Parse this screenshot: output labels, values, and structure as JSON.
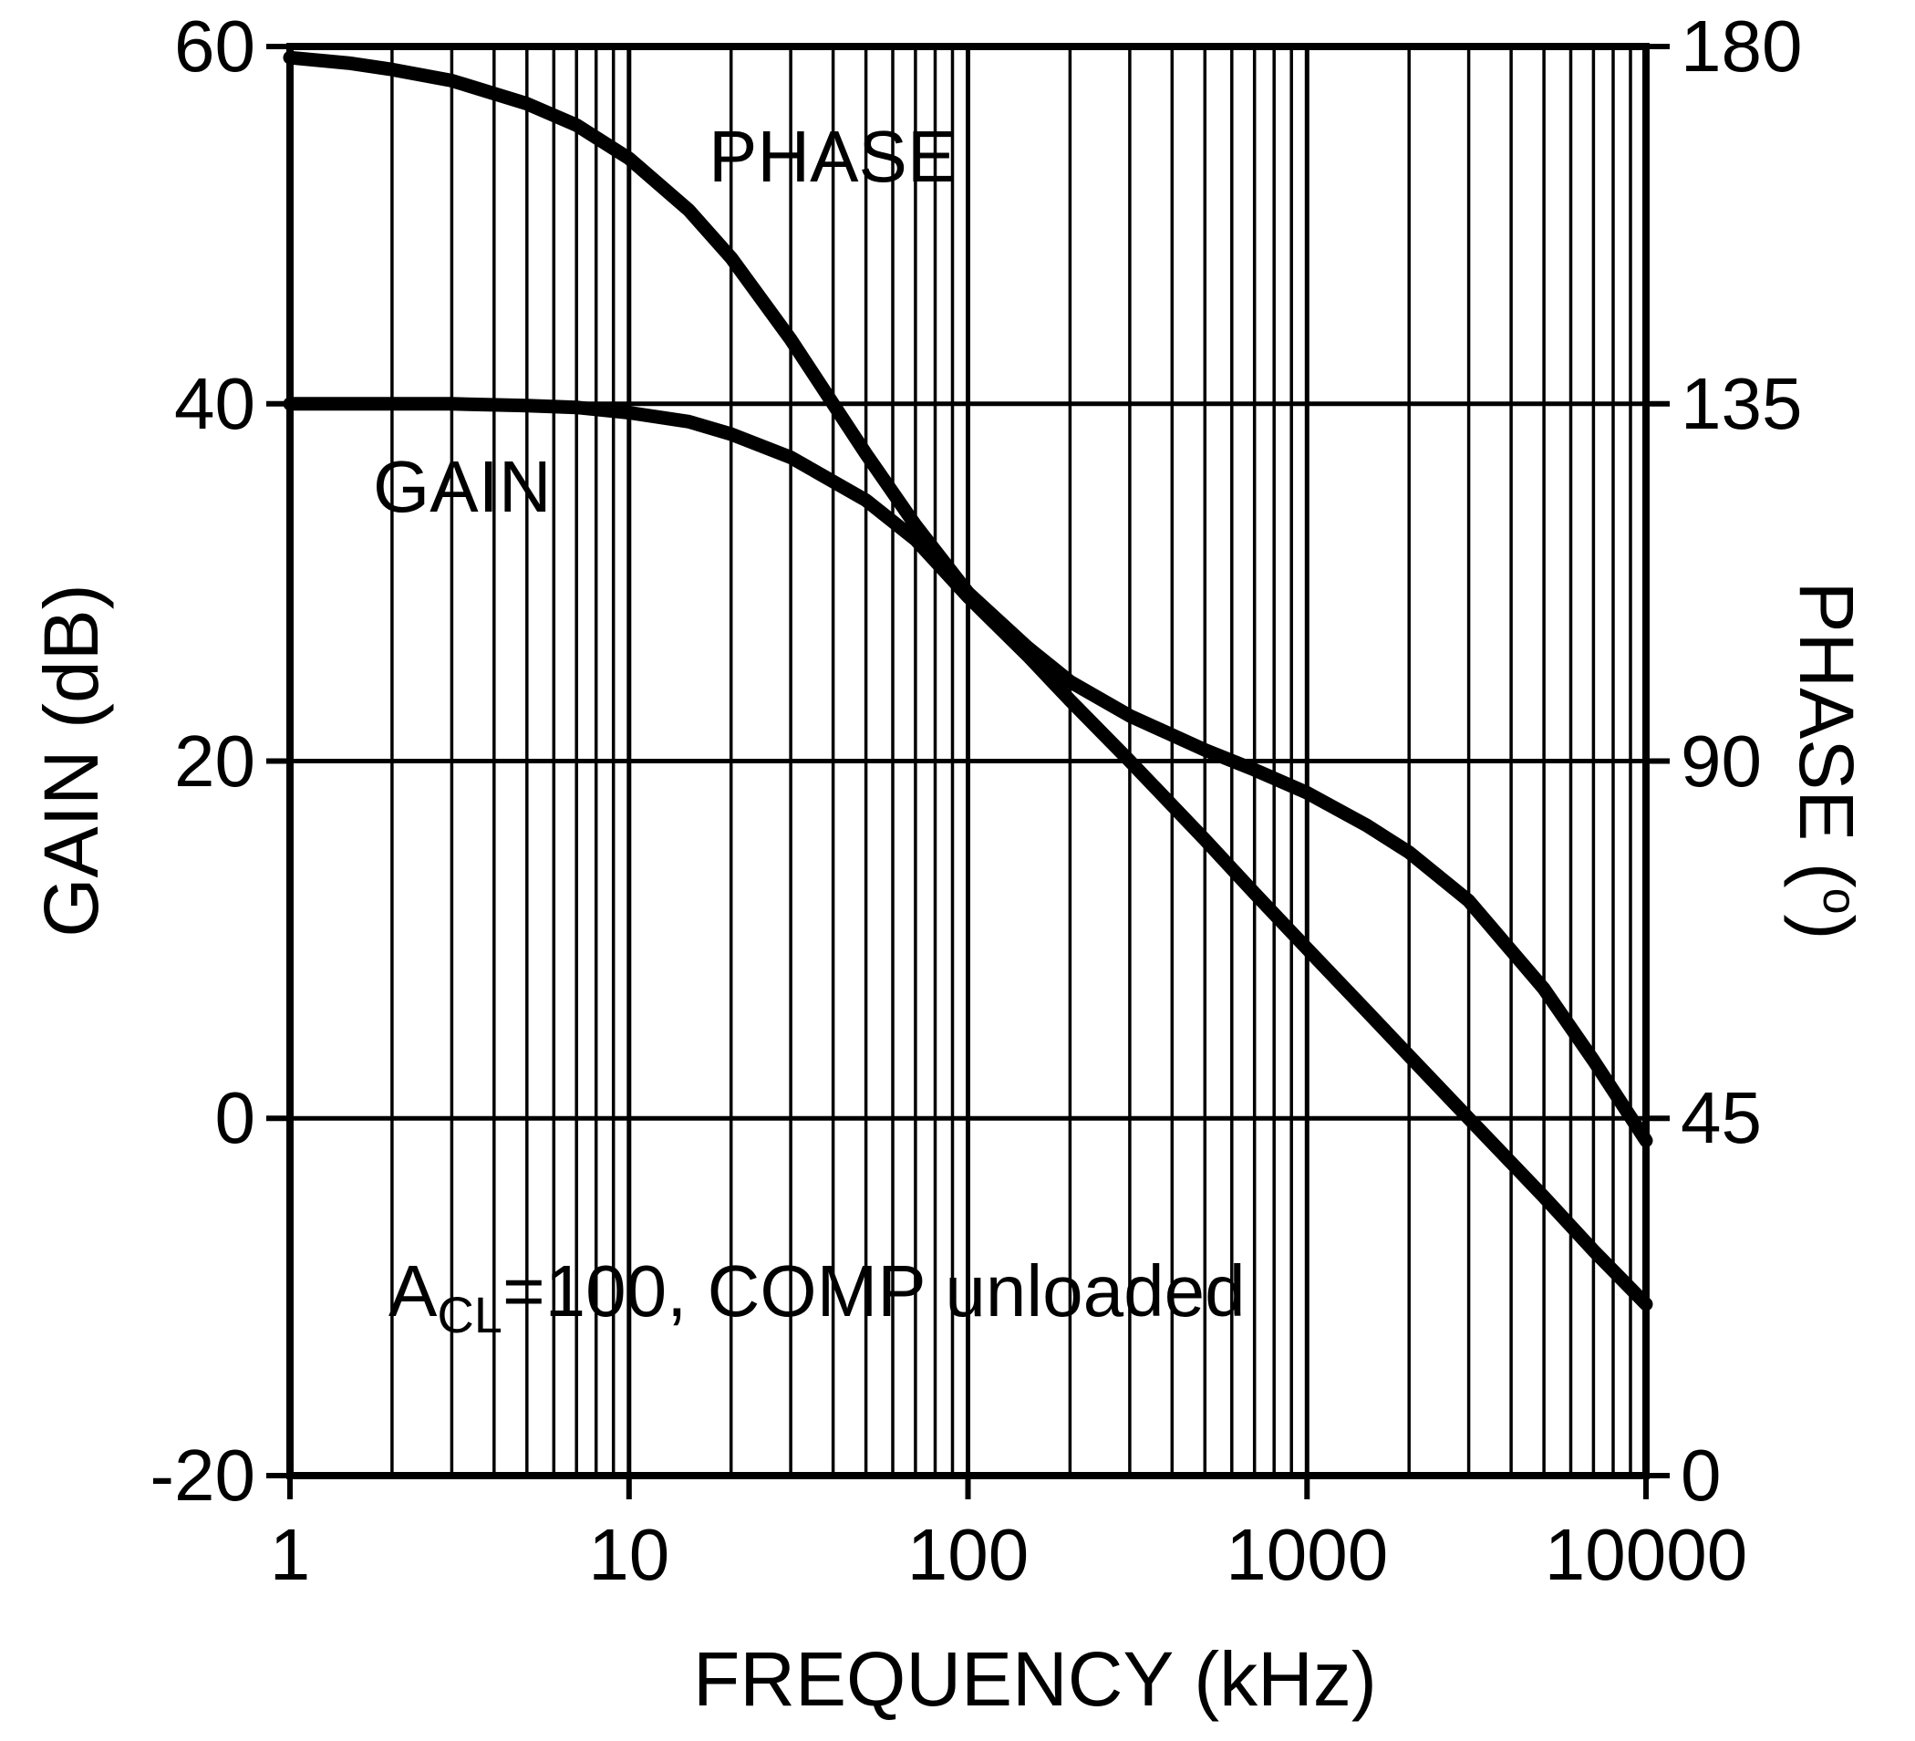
{
  "chart_data": {
    "type": "line",
    "title": "",
    "xlabel": "FREQUENCY (kHz)",
    "x_axis": {
      "scale": "log",
      "min": 1,
      "max": 10000,
      "ticks": [
        1,
        10,
        100,
        1000,
        10000
      ],
      "tick_labels": [
        "1",
        "10",
        "100",
        "1000",
        "10000"
      ]
    },
    "y_left": {
      "label": "GAIN (dB)",
      "min": -20,
      "max": 60,
      "ticks": [
        60,
        40,
        20,
        0,
        -20
      ],
      "tick_labels": [
        "60",
        "40",
        "20",
        "0",
        "-20"
      ]
    },
    "y_right": {
      "label": "PHASE (°)",
      "min": 0,
      "max": 180,
      "ticks": [
        180,
        135,
        90,
        45,
        0
      ],
      "tick_labels": [
        "180",
        "135",
        "90",
        "45",
        "0"
      ]
    },
    "grid": "log minor vertical gridlines each decade; major horizontal gridlines every 20 dB / 45 deg",
    "legend_position": "labels-on-curves",
    "annotation": "A_CL=100, COMP unloaded",
    "colors": {
      "line": "#000000",
      "grid": "#000000",
      "background": "#ffffff"
    },
    "series": [
      {
        "name": "GAIN",
        "axis": "left",
        "x": [
          1,
          1.5,
          2,
          3,
          5,
          7,
          10,
          15,
          20,
          30,
          50,
          70,
          100,
          150,
          200,
          300,
          500,
          700,
          1000,
          1500,
          2000,
          3000,
          5000,
          7000,
          10000
        ],
        "values": [
          40,
          40,
          40,
          40,
          39.9,
          39.8,
          39.5,
          39,
          38.3,
          37,
          34.6,
          32.4,
          29.2,
          25.9,
          23.4,
          20,
          15.6,
          12.6,
          9.5,
          6,
          3.5,
          0,
          -4.4,
          -7.4,
          -10.4
        ]
      },
      {
        "name": "PHASE",
        "axis": "right",
        "x": [
          1,
          1.5,
          2,
          3,
          5,
          7,
          10,
          15,
          20,
          30,
          50,
          70,
          100,
          150,
          200,
          300,
          500,
          700,
          1000,
          1500,
          2000,
          3000,
          5000,
          7000,
          10000
        ],
        "values": [
          178.6,
          177.9,
          177.1,
          175.7,
          172.8,
          170.1,
          165.9,
          159.4,
          153.4,
          143.1,
          128.7,
          119.7,
          111.2,
          104.3,
          100,
          95.7,
          91.4,
          88.9,
          86,
          81.9,
          78.5,
          72.4,
          61.3,
          52.3,
          42.2
        ]
      }
    ]
  },
  "labels": {
    "phase_curve": "PHASE",
    "gain_curve": "GAIN",
    "xlabel": "FREQUENCY (kHz)",
    "ylabel_left": "GAIN (dB)",
    "ylabel_right_text": "PHASE (",
    "ylabel_right_sup": "o",
    "ylabel_right_close": ")",
    "annotation_prefix": "A",
    "annotation_sub": "CL",
    "annotation_rest": "=100, COMP unloaded"
  }
}
